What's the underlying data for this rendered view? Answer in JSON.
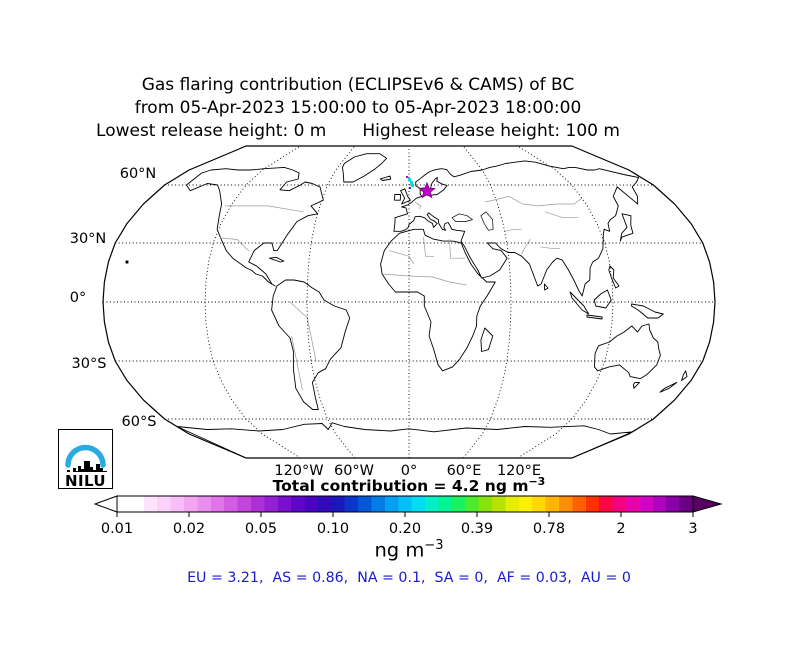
{
  "figure": {
    "title_line1": "Gas flaring contribution (ECLIPSEv6 & CAMS) of BC",
    "title_line2": "from 05-Apr-2023 15:00:00 to 05-Apr-2023 18:00:00",
    "release_low": "Lowest release height: 0 m",
    "release_high": "Highest release height: 100 m"
  },
  "map": {
    "lat_labels": [
      "60°N",
      "30°N",
      "0°",
      "30°S",
      "60°S"
    ],
    "lon_labels": [
      "120°W",
      "60°W",
      "0°",
      "60°E",
      "120°E"
    ],
    "hotspot_marker_color": "#c203cc",
    "plume_color": "#00dfe0",
    "plume_dot_blue": "#2233ee"
  },
  "total": {
    "label": "Total contribution = 4.2 ng m",
    "exponent": "−3"
  },
  "colorbar": {
    "tick_labels": [
      "0.01",
      "0.02",
      "0.05",
      "0.10",
      "0.20",
      "0.39",
      "0.78",
      "2",
      "3"
    ],
    "unit": "ng m",
    "unit_exponent": "−3",
    "arrow_right_color": "#580062",
    "colors": [
      "#ffffff",
      "#ffffff",
      "#fde4fc",
      "#fbd2fa",
      "#f8bef7",
      "#f2a6f2",
      "#ea8eee",
      "#e076e8",
      "#d35de2",
      "#c346dc",
      "#ad30d7",
      "#9420d3",
      "#7a10ce",
      "#6006c8",
      "#4a04c2",
      "#3309bc",
      "#1c16bd",
      "#0e35c9",
      "#0458d8",
      "#007ce5",
      "#009ff0",
      "#00c0f6",
      "#00dcf2",
      "#00efc8",
      "#00f495",
      "#1af25e",
      "#4deb2b",
      "#84e40b",
      "#b8e300",
      "#e6ed00",
      "#fcf000",
      "#ffd900",
      "#ffb500",
      "#ff8d00",
      "#ff6100",
      "#ff3100",
      "#fa0743",
      "#f1007f",
      "#e500ab",
      "#d300c4",
      "#b000c0",
      "#8c00a8",
      "#68007f"
    ]
  },
  "regions": {
    "display": "EU = 3.21,  AS = 0.86,  NA = 0.1,  SA = 0,  AF = 0.03,  AU = 0",
    "values": {
      "EU": 3.21,
      "AS": 0.86,
      "NA": 0.1,
      "SA": 0,
      "AF": 0.03,
      "AU": 0
    }
  },
  "logo": {
    "name": "NILU",
    "arc_color": "#29abe2"
  }
}
